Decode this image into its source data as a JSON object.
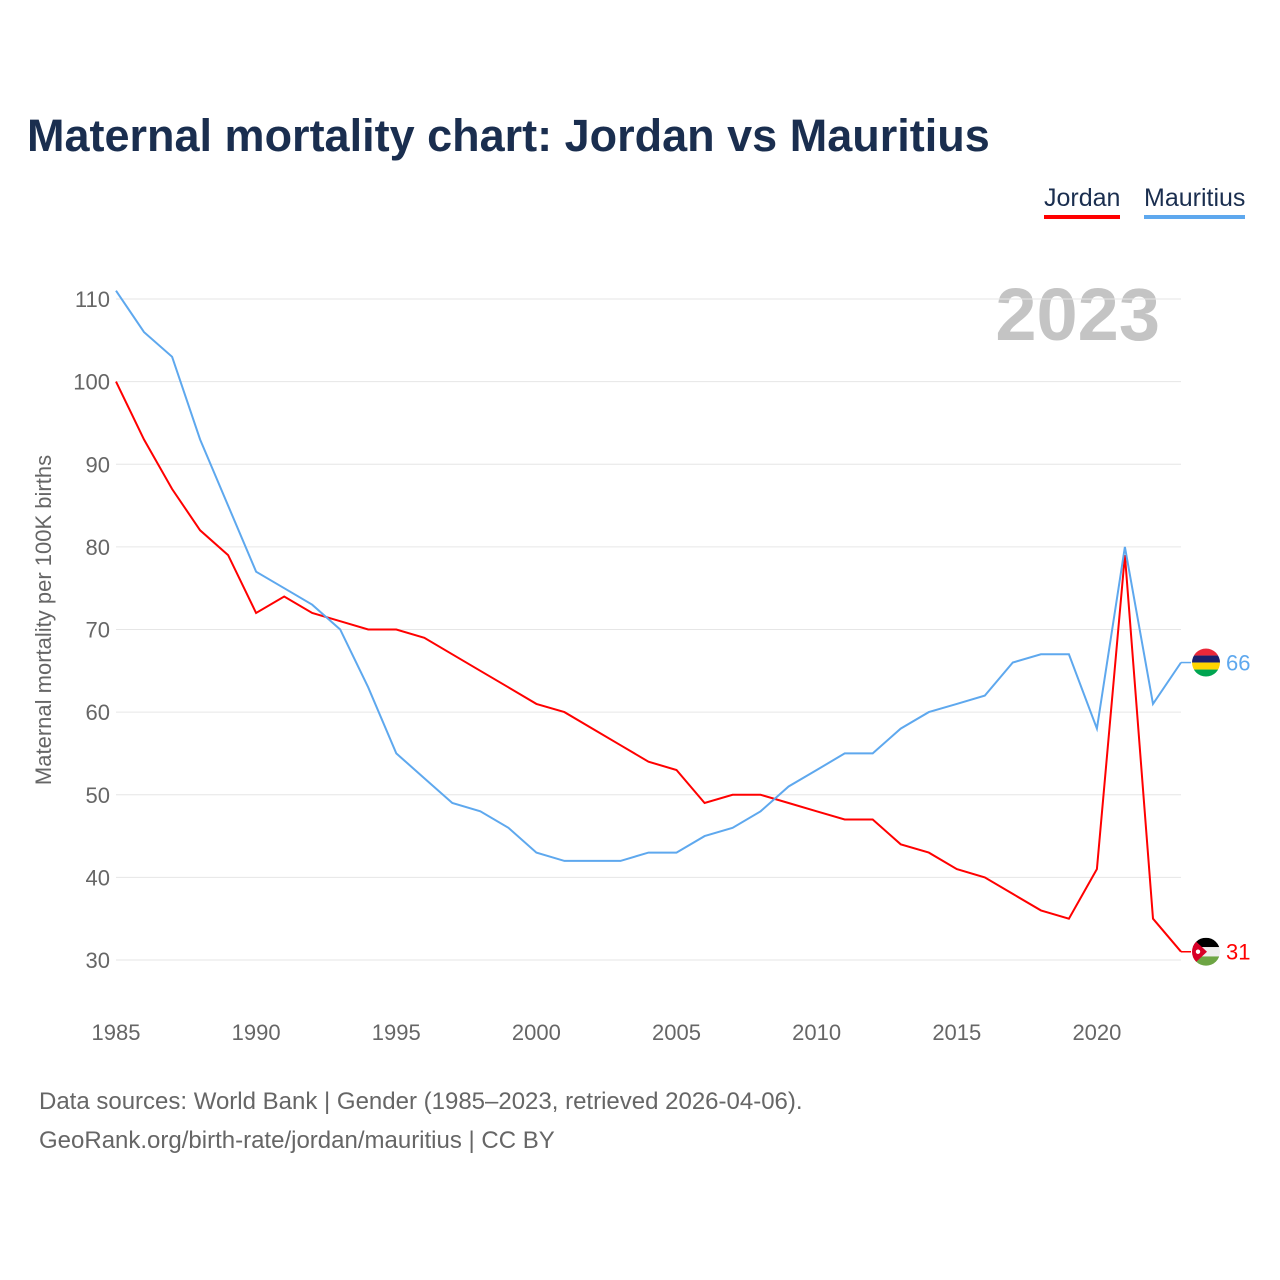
{
  "title": "Maternal mortality chart: Jordan vs Mauritius",
  "legend": [
    "Jordan",
    "Mauritius"
  ],
  "source_line1": "Data sources: World Bank | Gender (1985–2023, retrieved 2026-04-06).",
  "source_line2": "GeoRank.org/birth-rate/jordan/mauritius | CC BY",
  "chart_data": {
    "type": "line",
    "title": "Maternal mortality chart: Jordan vs Mauritius",
    "year_label": "2023",
    "xlabel": "",
    "ylabel": "Maternal mortality per 100K births",
    "xlim": [
      1985,
      2023
    ],
    "ylim": [
      30,
      110
    ],
    "xticks": [
      1985,
      1990,
      1995,
      2000,
      2005,
      2010,
      2015,
      2020
    ],
    "yticks": [
      30,
      40,
      50,
      60,
      70,
      80,
      90,
      100,
      110
    ],
    "grid": true,
    "legend_position": "top-right",
    "x": [
      1985,
      1986,
      1987,
      1988,
      1989,
      1990,
      1991,
      1992,
      1993,
      1994,
      1995,
      1996,
      1997,
      1998,
      1999,
      2000,
      2001,
      2002,
      2003,
      2004,
      2005,
      2006,
      2007,
      2008,
      2009,
      2010,
      2011,
      2012,
      2013,
      2014,
      2015,
      2016,
      2017,
      2018,
      2019,
      2020,
      2021,
      2022,
      2023
    ],
    "series": [
      {
        "name": "Jordan",
        "color": "#ff0000",
        "end_label": "31",
        "values": [
          100,
          93,
          87,
          82,
          79,
          72,
          74,
          72,
          71,
          70,
          70,
          69,
          67,
          65,
          63,
          61,
          60,
          58,
          56,
          54,
          53,
          49,
          50,
          50,
          49,
          48,
          47,
          47,
          44,
          43,
          41,
          40,
          38,
          36,
          35,
          41,
          79,
          35,
          31
        ]
      },
      {
        "name": "Mauritius",
        "color": "#5ea8ee",
        "end_label": "66",
        "values": [
          111,
          106,
          103,
          93,
          85,
          77,
          75,
          73,
          70,
          63,
          55,
          52,
          49,
          48,
          46,
          43,
          42,
          42,
          42,
          43,
          43,
          45,
          46,
          48,
          51,
          53,
          55,
          55,
          58,
          60,
          61,
          62,
          66,
          67,
          67,
          58,
          80,
          61,
          66
        ]
      }
    ]
  }
}
